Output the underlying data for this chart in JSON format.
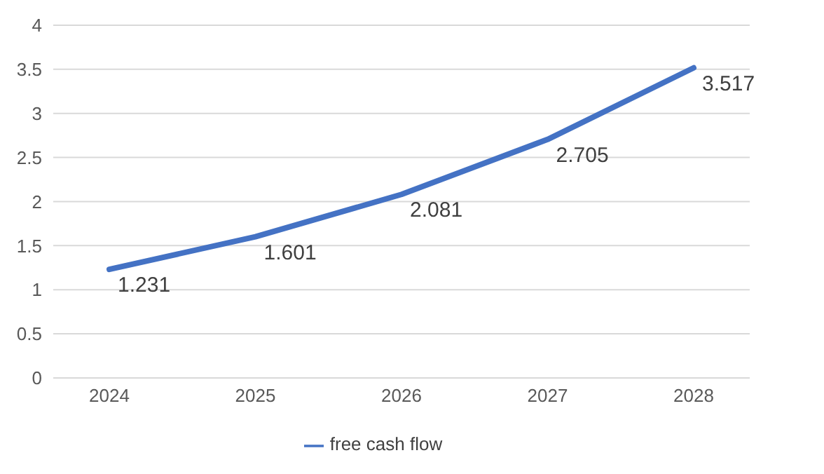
{
  "chart_data": {
    "type": "line",
    "categories": [
      "2024",
      "2025",
      "2026",
      "2027",
      "2028"
    ],
    "series": [
      {
        "name": "free cash flow",
        "color": "#4472c4",
        "values": [
          1.231,
          1.601,
          2.081,
          2.705,
          3.517
        ]
      }
    ],
    "ylim": [
      0,
      4
    ],
    "yticks": [
      0,
      0.5,
      1,
      1.5,
      2,
      2.5,
      3,
      3.5,
      4
    ],
    "grid": "y",
    "legend": "bottom",
    "data_labels": true,
    "marker": "none",
    "line_style": "solid"
  }
}
